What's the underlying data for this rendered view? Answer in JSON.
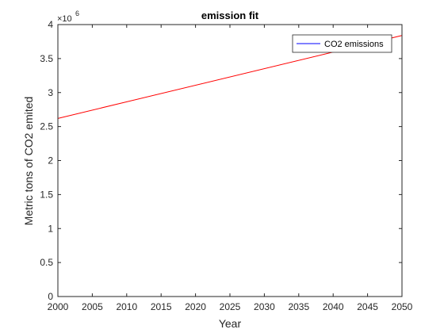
{
  "chart_data": {
    "type": "line",
    "title": "emission fit",
    "xlabel": "Year",
    "ylabel": "Metric tons of CO2 emited",
    "y_exponent": {
      "base": "×10",
      "power": "6"
    },
    "xlim": [
      2000,
      2050
    ],
    "ylim": [
      0,
      4000000
    ],
    "x_ticks": [
      2000,
      2005,
      2010,
      2015,
      2020,
      2025,
      2030,
      2035,
      2040,
      2045,
      2050
    ],
    "y_ticks": [
      0,
      500000,
      1000000,
      1500000,
      2000000,
      2500000,
      3000000,
      3500000,
      4000000
    ],
    "y_tick_labels": [
      "0",
      "0.5",
      "1",
      "1.5",
      "2",
      "2.5",
      "3",
      "3.5",
      "4"
    ],
    "grid": false,
    "legend": {
      "position": "top-right",
      "entries": [
        {
          "label": "CO2 emissions",
          "color": "#0000ff"
        }
      ]
    },
    "series": [
      {
        "name": "CO2 emissions",
        "color": "#0000ff",
        "x": [
          2000,
          2050
        ],
        "y": [
          0,
          0
        ]
      },
      {
        "color": "#ff0000",
        "x": [
          2000,
          2050
        ],
        "y": [
          2620000,
          3840000
        ]
      }
    ]
  }
}
